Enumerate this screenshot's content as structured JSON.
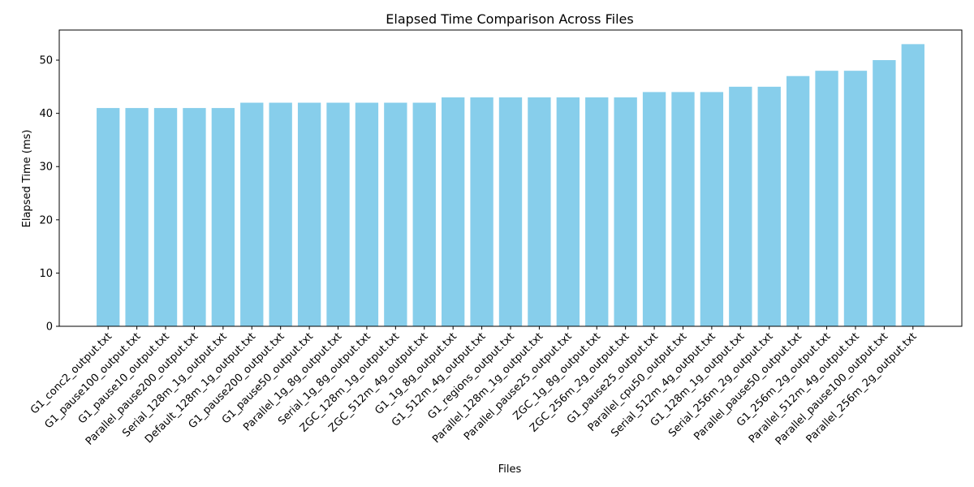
{
  "chart_data": {
    "type": "bar",
    "title": "Elapsed Time Comparison Across Files",
    "xlabel": "Files",
    "ylabel": "Elapsed Time (ms)",
    "ylim": [
      0,
      55.65
    ],
    "yticks": [
      0,
      10,
      20,
      30,
      40,
      50
    ],
    "grid": false,
    "bar_color": "#87CEEB",
    "categories": [
      "G1_conc2_output.txt",
      "G1_pause100_output.txt",
      "G1_pause10_output.txt",
      "Parallel_pause200_output.txt",
      "Serial_128m_1g_output.txt",
      "Default_128m_1g_output.txt",
      "G1_pause200_output.txt",
      "G1_pause50_output.txt",
      "Parallel_1g_8g_output.txt",
      "Serial_1g_8g_output.txt",
      "ZGC_128m_1g_output.txt",
      "ZGC_512m_4g_output.txt",
      "G1_1g_8g_output.txt",
      "G1_512m_4g_output.txt",
      "G1_regions_output.txt",
      "Parallel_128m_1g_output.txt",
      "Parallel_pause25_output.txt",
      "ZGC_1g_8g_output.txt",
      "ZGC_256m_2g_output.txt",
      "G1_pause25_output.txt",
      "Parallel_cpu50_output.txt",
      "Serial_512m_4g_output.txt",
      "G1_128m_1g_output.txt",
      "Serial_256m_2g_output.txt",
      "Parallel_pause50_output.txt",
      "G1_256m_2g_output.txt",
      "Parallel_512m_4g_output.txt",
      "Parallel_pause100_output.txt",
      "Parallel_256m_2g_output.txt"
    ],
    "values": [
      41,
      41,
      41,
      41,
      41,
      42,
      42,
      42,
      42,
      42,
      42,
      42,
      43,
      43,
      43,
      43,
      43,
      43,
      43,
      44,
      44,
      44,
      45,
      45,
      47,
      48,
      48,
      50,
      53
    ]
  }
}
